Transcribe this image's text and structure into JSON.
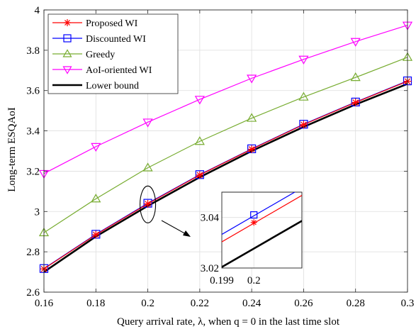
{
  "chart_data": {
    "type": "line",
    "xlabel": "Query arrival rate, λ, when q = 0 in the last time slot",
    "ylabel": "Long-term ESQAoI",
    "xlim": [
      0.16,
      0.3
    ],
    "ylim": [
      2.6,
      4.0
    ],
    "x": [
      0.16,
      0.18,
      0.2,
      0.22,
      0.24,
      0.26,
      0.28,
      0.3
    ],
    "x_tick_labels": [
      "0.16",
      "0.18",
      "0.2",
      "0.22",
      "0.24",
      "0.26",
      "0.28",
      "0.3"
    ],
    "y_ticks": [
      2.6,
      2.8,
      3.0,
      3.2,
      3.4,
      3.6,
      3.8,
      4.0
    ],
    "y_tick_labels": [
      "2.6",
      "2.8",
      "3",
      "3.2",
      "3.4",
      "3.6",
      "3.8",
      "4"
    ],
    "grid": true,
    "legend_position": "top-left",
    "series": [
      {
        "name": "Proposed WI",
        "color": "#ff0000",
        "marker": "asterisk",
        "values": [
          2.715,
          2.885,
          3.038,
          3.181,
          3.309,
          3.431,
          3.541,
          3.646
        ]
      },
      {
        "name": "Discounted WI",
        "color": "#0000ff",
        "marker": "square",
        "values": [
          2.717,
          2.887,
          3.041,
          3.183,
          3.311,
          3.433,
          3.543,
          3.648
        ]
      },
      {
        "name": "Greedy",
        "color": "#77ac30",
        "marker": "triangle-up",
        "values": [
          2.895,
          3.063,
          3.217,
          3.348,
          3.463,
          3.568,
          3.665,
          3.765
        ]
      },
      {
        "name": "AoI-oriented WI",
        "color": "#ff00ff",
        "marker": "triangle-down",
        "values": [
          3.188,
          3.322,
          3.443,
          3.556,
          3.661,
          3.755,
          3.843,
          3.924
        ]
      },
      {
        "name": "Lower bound",
        "color": "#000000",
        "marker": "none",
        "values": [
          2.7,
          2.876,
          3.028,
          3.17,
          3.3,
          3.42,
          3.531,
          3.633
        ]
      }
    ],
    "inset": {
      "xlim": [
        0.199,
        0.2015
      ],
      "ylim": [
        3.02,
        3.05
      ],
      "x_tick_labels": [
        "0.199",
        "0.2"
      ],
      "y_tick_labels": [
        "3.02",
        "3.04"
      ],
      "x_ticks": [
        0.199,
        0.2
      ],
      "y_ticks": [
        3.02,
        3.04
      ]
    }
  }
}
